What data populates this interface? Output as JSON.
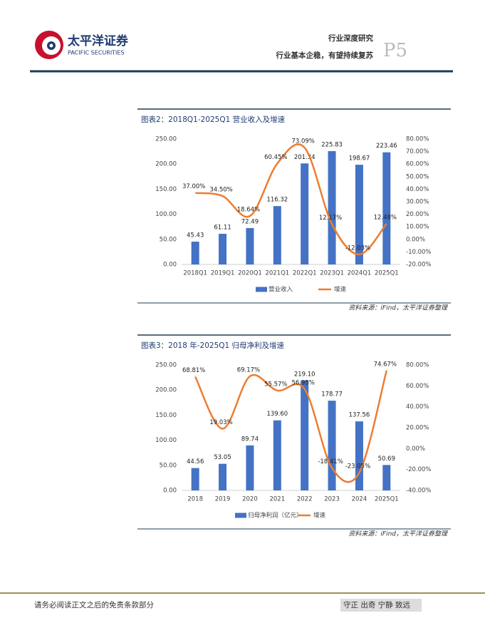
{
  "header": {
    "logo_cn": "太平洋证券",
    "logo_en": "PACIFIC SECURITIES",
    "report_type": "行业深度研究",
    "report_title": "行业基本企稳，有望持续复苏",
    "page": "P5"
  },
  "chart_data": [
    {
      "type": "bar",
      "title": "图表2：2018Q1-2025Q1 营业收入及增速",
      "source": "资料来源：iFind，太平洋证券整理",
      "categories": [
        "2018Q1",
        "2019Q1",
        "2020Q1",
        "2021Q1",
        "2022Q1",
        "2023Q1",
        "2024Q1",
        "2025Q1"
      ],
      "series": [
        {
          "name": "营业收入",
          "color": "#4472c4",
          "values": [
            45.43,
            61.11,
            72.49,
            116.32,
            201.34,
            225.83,
            198.67,
            223.46
          ]
        },
        {
          "name": "增速",
          "type": "line",
          "axis": "y2",
          "color": "#ed7d31",
          "values": [
            37.0,
            34.5,
            18.64,
            60.45,
            73.09,
            12.17,
            -12.03,
            12.48
          ],
          "value_labels": [
            "37.00%",
            "34.50%",
            "18.64%",
            "60.45%",
            "73.09%",
            "12.17%",
            "-12.03%",
            "12.48%"
          ]
        }
      ],
      "ylim": [
        0,
        250
      ],
      "yticks": [
        {
          "value": 0,
          "label": "0.00"
        },
        {
          "value": 50,
          "label": "50.00"
        },
        {
          "value": 100,
          "label": "100.00"
        },
        {
          "value": 150,
          "label": "150.00"
        },
        {
          "value": 200,
          "label": "200.00"
        },
        {
          "value": 250,
          "label": "250.00"
        }
      ],
      "y2lim": [
        -20,
        80
      ],
      "y2ticks": [
        {
          "value": -20,
          "label": "-20.00%"
        },
        {
          "value": -10,
          "label": "-10.00%"
        },
        {
          "value": 0,
          "label": "0.00%"
        },
        {
          "value": 10,
          "label": "10.00%"
        },
        {
          "value": 20,
          "label": "20.00%"
        },
        {
          "value": 30,
          "label": "30.00%"
        },
        {
          "value": 40,
          "label": "40.00%"
        },
        {
          "value": 50,
          "label": "50.00%"
        },
        {
          "value": 60,
          "label": "60.00%"
        },
        {
          "value": 70,
          "label": "70.00%"
        },
        {
          "value": 80,
          "label": "80.00%"
        }
      ]
    },
    {
      "type": "bar",
      "title": "图表3：2018 年-2025Q1 归母净利及增速",
      "source": "资料来源：iFind，太平洋证券整理",
      "categories": [
        "2018",
        "2019",
        "2020",
        "2021",
        "2022",
        "2023",
        "2024",
        "2025Q1"
      ],
      "series": [
        {
          "name": "归母净利润（亿元）",
          "color": "#4472c4",
          "values": [
            44.56,
            53.05,
            89.74,
            139.6,
            219.1,
            178.77,
            137.56,
            50.69
          ],
          "value_labels": [
            "44.56",
            "53.05",
            "89.74",
            "139.60",
            "219.10",
            "178.77",
            "137.56",
            "50.69"
          ]
        },
        {
          "name": "增速",
          "type": "line",
          "axis": "y2",
          "color": "#ed7d31",
          "values": [
            68.81,
            19.03,
            69.17,
            55.57,
            56.95,
            -18.41,
            -23.05,
            74.67
          ],
          "value_labels": [
            "68.81%",
            "19.03%",
            "69.17%",
            "55.57%",
            "56.95%",
            "-18.41%",
            "-23.05%",
            "74.67%"
          ]
        }
      ],
      "ylim": [
        0,
        250
      ],
      "yticks": [
        {
          "value": 0,
          "label": "0.00"
        },
        {
          "value": 50,
          "label": "50.00"
        },
        {
          "value": 100,
          "label": "100.00"
        },
        {
          "value": 150,
          "label": "150.00"
        },
        {
          "value": 200,
          "label": "200.00"
        },
        {
          "value": 250,
          "label": "250.00"
        }
      ],
      "y2lim": [
        -40,
        80
      ],
      "y2ticks": [
        {
          "value": -40,
          "label": "-40.00%"
        },
        {
          "value": -20,
          "label": "-20.00%"
        },
        {
          "value": 0,
          "label": "0.00%"
        },
        {
          "value": 20,
          "label": "20.00%"
        },
        {
          "value": 40,
          "label": "40.00%"
        },
        {
          "value": 60,
          "label": "60.00%"
        },
        {
          "value": 80,
          "label": "80.00%"
        }
      ]
    }
  ],
  "footer": {
    "disclaimer": "请务必阅读正文之后的免责条款部分",
    "motto": "守正 出奇 宁静 致远"
  }
}
